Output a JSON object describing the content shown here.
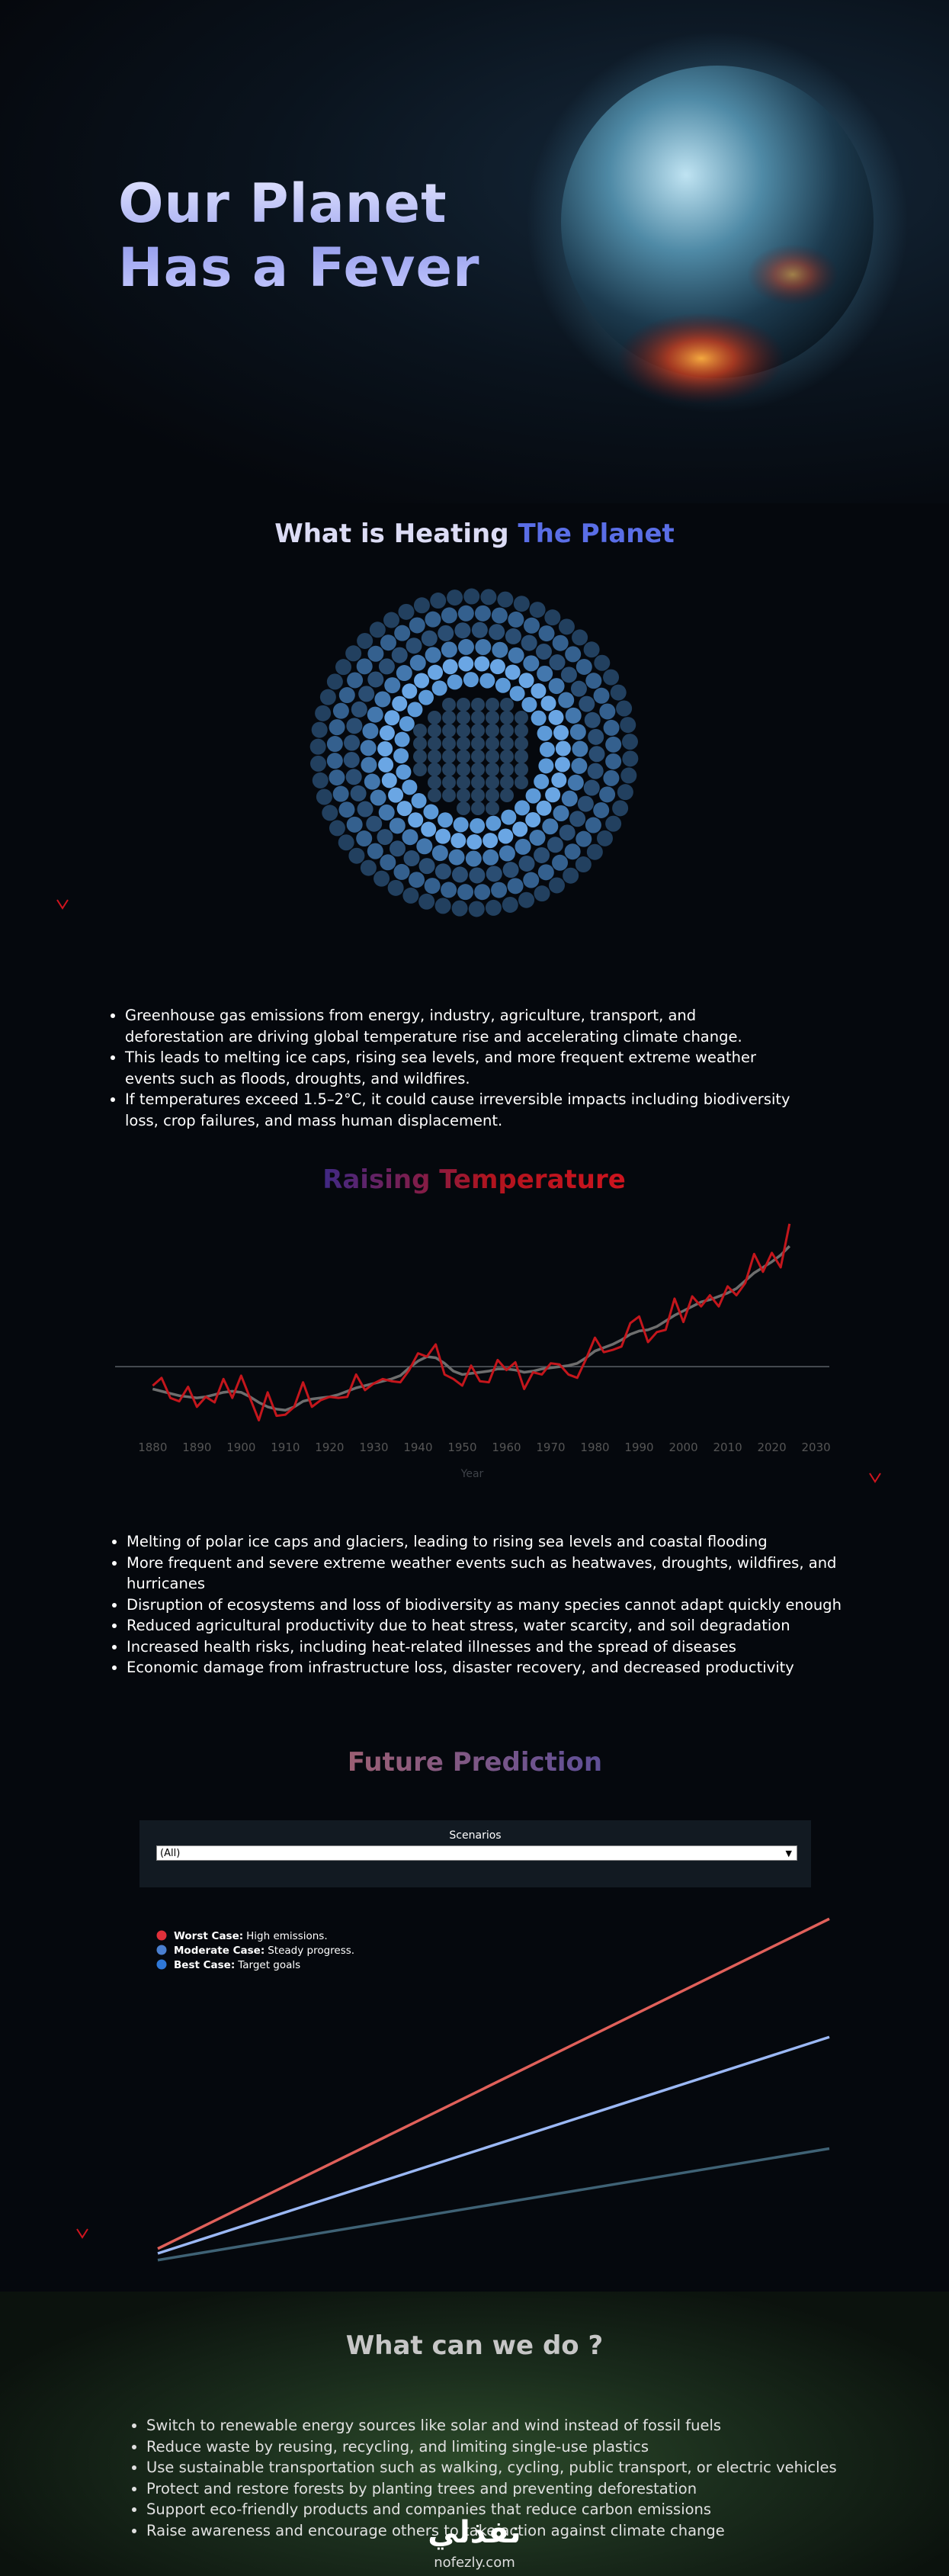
{
  "hero": {
    "title_line_1": "Our Planet",
    "title_line_2": "Has a Fever"
  },
  "causes": {
    "heading_1": "What is Heating",
    "heading_2": "The Planet",
    "bullets": [
      "Greenhouse gas emissions from energy, industry, agriculture, transport, and deforestation are driving global temperature rise and accelerating climate change.",
      "This leads to melting ice caps, rising sea levels, and more frequent extreme weather events such as floods, droughts, and wildfires.",
      "If temperatures exceed 1.5–2°C, it could cause irreversible impacts including biodiversity loss, crop failures, and mass human displacement."
    ]
  },
  "impacts": {
    "bullets": [
      "Melting of polar ice caps and glaciers, leading to rising sea levels and coastal flooding",
      "More frequent and severe extreme weather events such as heatwaves, droughts, wildfires, and hurricanes",
      "Disruption of ecosystems and loss of biodiversity as many species cannot adapt quickly enough",
      "Reduced agricultural productivity due to heat stress, water scarcity, and soil degradation",
      "Increased health risks, including heat-related illnesses and the spread of diseases",
      "Economic damage from infrastructure loss, disaster recovery, and decreased productivity"
    ]
  },
  "actions": {
    "heading": "What can we do ?",
    "bullets": [
      "Switch to renewable energy sources like solar and wind instead of fossil fuels",
      "Reduce waste by reusing, recycling, and limiting single-use plastics",
      "Use sustainable transportation such as walking, cycling, public transport, or electric vehicles",
      "Protect and restore forests by planting trees and preventing deforestation",
      "Support eco-friendly products and companies that reduce carbon emissions",
      "Raise awareness and encourage others to take action against climate change"
    ]
  },
  "watermark": {
    "logo": "نفذلي",
    "site": "nofezly.com"
  },
  "chart_data": [
    {
      "type": "line",
      "title": "Raising Temperature",
      "x_label": "Year",
      "x": [
        1880,
        1882,
        1884,
        1886,
        1888,
        1890,
        1892,
        1894,
        1896,
        1898,
        1900,
        1902,
        1904,
        1906,
        1908,
        1910,
        1912,
        1914,
        1916,
        1918,
        1920,
        1922,
        1924,
        1926,
        1928,
        1930,
        1932,
        1934,
        1936,
        1938,
        1940,
        1942,
        1944,
        1946,
        1948,
        1950,
        1952,
        1954,
        1956,
        1958,
        1960,
        1962,
        1964,
        1966,
        1968,
        1970,
        1972,
        1974,
        1976,
        1978,
        1980,
        1982,
        1984,
        1986,
        1988,
        1990,
        1992,
        1994,
        1996,
        1998,
        2000,
        2002,
        2004,
        2006,
        2008,
        2010,
        2012,
        2014,
        2016,
        2018,
        2020,
        2022,
        2024
      ],
      "series": [
        {
          "color": "#c4161c",
          "values": [
            -0.17,
            -0.1,
            -0.28,
            -0.31,
            -0.18,
            -0.36,
            -0.27,
            -0.32,
            -0.11,
            -0.28,
            -0.08,
            -0.28,
            -0.48,
            -0.23,
            -0.44,
            -0.43,
            -0.36,
            -0.14,
            -0.36,
            -0.3,
            -0.27,
            -0.28,
            -0.27,
            -0.07,
            -0.21,
            -0.15,
            -0.11,
            -0.13,
            -0.14,
            -0.03,
            0.12,
            0.09,
            0.2,
            -0.07,
            -0.11,
            -0.17,
            0.01,
            -0.13,
            -0.14,
            0.06,
            -0.03,
            0.04,
            -0.2,
            -0.05,
            -0.07,
            0.03,
            0.02,
            -0.07,
            -0.1,
            0.07,
            0.26,
            0.13,
            0.15,
            0.18,
            0.39,
            0.45,
            0.22,
            0.31,
            0.33,
            0.61,
            0.4,
            0.63,
            0.54,
            0.64,
            0.54,
            0.72,
            0.64,
            0.75,
            1.01,
            0.85,
            1.02,
            0.89,
            1.28
          ]
        },
        {
          "color": "#6e6e6e",
          "values": [
            -0.2,
            -0.22,
            -0.24,
            -0.26,
            -0.27,
            -0.28,
            -0.27,
            -0.25,
            -0.23,
            -0.22,
            -0.23,
            -0.27,
            -0.32,
            -0.36,
            -0.38,
            -0.39,
            -0.36,
            -0.31,
            -0.29,
            -0.28,
            -0.27,
            -0.25,
            -0.22,
            -0.19,
            -0.17,
            -0.15,
            -0.13,
            -0.11,
            -0.08,
            -0.01,
            0.05,
            0.09,
            0.08,
            0.03,
            -0.04,
            -0.07,
            -0.06,
            -0.05,
            -0.04,
            -0.02,
            -0.02,
            -0.03,
            -0.05,
            -0.04,
            -0.02,
            -0.01,
            0,
            0.01,
            0.03,
            0.08,
            0.14,
            0.17,
            0.2,
            0.24,
            0.29,
            0.32,
            0.33,
            0.36,
            0.41,
            0.46,
            0.5,
            0.54,
            0.58,
            0.6,
            0.63,
            0.66,
            0.7,
            0.77,
            0.84,
            0.89,
            0.94,
            1.0,
            1.08
          ]
        }
      ],
      "xlim": [
        1871.5,
        2033
      ],
      "xticks": [
        1880,
        1890,
        1900,
        1910,
        1920,
        1930,
        1940,
        1950,
        1960,
        1970,
        1980,
        1990,
        2000,
        2010,
        2020,
        2030
      ],
      "ylim": [
        -0.6,
        1.6
      ],
      "grid": false
    },
    {
      "type": "line",
      "title": "Future Prediction",
      "filter_label": "Scenarios",
      "filter_value": "(All)",
      "categories": [
        null,
        null
      ],
      "series": [
        {
          "name": "Worst Case:",
          "note": "High emissions.",
          "color": "#e0605a",
          "legend_color": "#e0303a",
          "values": [
            1.41,
            4.87
          ]
        },
        {
          "name": "Moderate Case:",
          "note": "Steady progress.",
          "color": "#9bb8f5",
          "legend_color": "#4a7fd0",
          "values": [
            1.36,
            3.63
          ]
        },
        {
          "name": "Best Case:",
          "note": "Target goals",
          "color": "#3f6275",
          "legend_color": "#2f78d8",
          "values": [
            1.29,
            2.46
          ]
        }
      ],
      "ylim": [
        1,
        5
      ],
      "grid": false
    }
  ]
}
